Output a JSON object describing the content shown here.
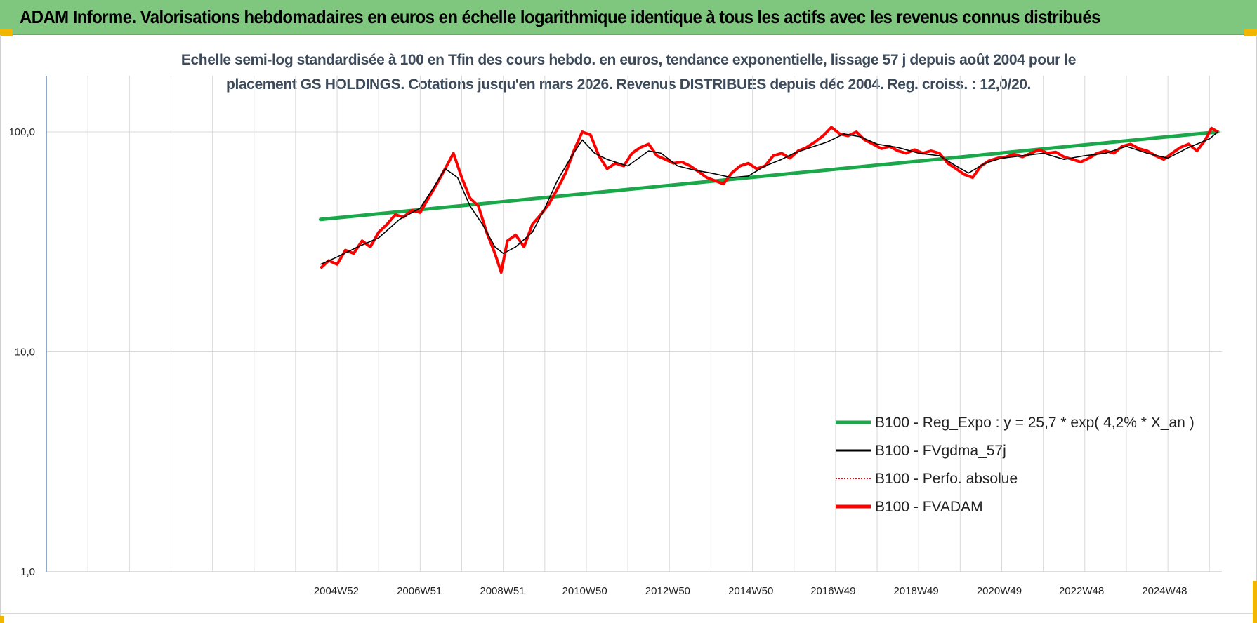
{
  "header": {
    "title": "ADAM Informe. Valorisations hebdomadaires en euros en échelle logarithmique identique à tous les actifs avec les revenus connus distribués"
  },
  "colors": {
    "banner": "#7fc77f",
    "corner": "#f2b500",
    "reg_expo": "#1aa84a",
    "fvgdma": "#000000",
    "perfo": "#c00000",
    "fvadam": "#ff0000",
    "grid": "#d9d9d9",
    "axis": "#4a6fa5"
  },
  "chart_data": {
    "type": "line",
    "title_line1": "Echelle semi-log standardisée à 100 en Tfin des cours hebdo. en euros, tendance exponentielle, lissage 57 j depuis août 2004 pour le",
    "title_line2": "placement GS HOLDINGS. Cotations jusqu'en mars 2026. Revenus DISTRIBUES depuis déc 2004. Reg. croiss. : 12,0/20.",
    "y_scale": "log",
    "ylim": [
      1,
      180
    ],
    "y_ticks": [
      {
        "value": 1,
        "label": "1,0"
      },
      {
        "value": 10,
        "label": "10,0"
      },
      {
        "value": 100,
        "label": "100,0"
      }
    ],
    "xlim": [
      1998.0,
      2026.3
    ],
    "x_ticks": [
      {
        "value": 2004.98,
        "label": "2004W52"
      },
      {
        "value": 2006.98,
        "label": "2006W51"
      },
      {
        "value": 2008.98,
        "label": "2008W51"
      },
      {
        "value": 2010.96,
        "label": "2010W50"
      },
      {
        "value": 2012.96,
        "label": "2012W50"
      },
      {
        "value": 2014.96,
        "label": "2014W50"
      },
      {
        "value": 2016.94,
        "label": "2016W49"
      },
      {
        "value": 2018.94,
        "label": "2018W49"
      },
      {
        "value": 2020.94,
        "label": "2020W49"
      },
      {
        "value": 2022.92,
        "label": "2022W48"
      },
      {
        "value": 2024.92,
        "label": "2024W48"
      }
    ],
    "grid_x_step_years": 1,
    "legend_position": "bottom-right",
    "series": [
      {
        "key": "reg_expo",
        "name": "B100 - Reg_Expo : y = 25,7 * exp( 4,2% *  X_an )",
        "style": "thick",
        "x": [
          2004.6,
          2026.2
        ],
        "y": [
          40.0,
          100.0
        ]
      },
      {
        "key": "fvgdma",
        "name": "B100 - FVgdma_57j",
        "style": "thin",
        "x": [
          2004.6,
          2005.0,
          2005.5,
          2006.0,
          2006.5,
          2007.0,
          2007.3,
          2007.6,
          2007.9,
          2008.2,
          2008.5,
          2008.8,
          2009.0,
          2009.3,
          2009.7,
          2010.0,
          2010.3,
          2010.6,
          2010.9,
          2011.2,
          2011.5,
          2012.0,
          2012.5,
          2012.8,
          2013.2,
          2013.6,
          2014.0,
          2014.5,
          2014.9,
          2015.3,
          2015.7,
          2016.0,
          2016.4,
          2016.8,
          2017.2,
          2017.6,
          2018.0,
          2018.5,
          2019.0,
          2019.5,
          2019.9,
          2020.2,
          2020.6,
          2021.0,
          2021.5,
          2022.0,
          2022.5,
          2023.0,
          2023.5,
          2024.0,
          2024.5,
          2025.0,
          2025.5,
          2026.0,
          2026.2
        ],
        "y": [
          25,
          27,
          30,
          33,
          40,
          45,
          55,
          68,
          62,
          46,
          38,
          30,
          28,
          30,
          35,
          45,
          60,
          75,
          92,
          80,
          75,
          70,
          82,
          80,
          70,
          67,
          65,
          62,
          63,
          70,
          75,
          80,
          85,
          90,
          98,
          95,
          88,
          85,
          80,
          78,
          70,
          65,
          72,
          76,
          78,
          80,
          75,
          78,
          80,
          86,
          80,
          76,
          85,
          93,
          100
        ]
      },
      {
        "key": "perfo",
        "name": "B100 - Perfo. absolue",
        "style": "dotted",
        "x": [],
        "y": []
      },
      {
        "key": "fvadam",
        "name": "B100 - FVADAM",
        "style": "thick-noisy",
        "x": [
          2004.6,
          2004.8,
          2005.0,
          2005.2,
          2005.4,
          2005.6,
          2005.8,
          2006.0,
          2006.2,
          2006.4,
          2006.6,
          2006.8,
          2007.0,
          2007.2,
          2007.4,
          2007.6,
          2007.8,
          2008.0,
          2008.2,
          2008.4,
          2008.6,
          2008.8,
          2008.95,
          2009.1,
          2009.3,
          2009.5,
          2009.7,
          2009.9,
          2010.1,
          2010.3,
          2010.5,
          2010.7,
          2010.9,
          2011.1,
          2011.3,
          2011.5,
          2011.7,
          2011.9,
          2012.1,
          2012.3,
          2012.5,
          2012.7,
          2012.9,
          2013.1,
          2013.3,
          2013.5,
          2013.7,
          2013.9,
          2014.1,
          2014.3,
          2014.5,
          2014.7,
          2014.9,
          2015.1,
          2015.3,
          2015.5,
          2015.7,
          2015.9,
          2016.1,
          2016.3,
          2016.5,
          2016.7,
          2016.9,
          2017.1,
          2017.3,
          2017.5,
          2017.7,
          2017.9,
          2018.1,
          2018.3,
          2018.5,
          2018.7,
          2018.9,
          2019.1,
          2019.3,
          2019.5,
          2019.7,
          2019.9,
          2020.1,
          2020.3,
          2020.5,
          2020.7,
          2020.9,
          2021.1,
          2021.3,
          2021.5,
          2021.7,
          2021.9,
          2022.1,
          2022.3,
          2022.5,
          2022.7,
          2022.9,
          2023.1,
          2023.3,
          2023.5,
          2023.7,
          2023.9,
          2024.1,
          2024.3,
          2024.5,
          2024.7,
          2024.9,
          2025.1,
          2025.3,
          2025.5,
          2025.7,
          2025.9,
          2026.05,
          2026.2
        ],
        "y": [
          24,
          26,
          25,
          29,
          28,
          32,
          30,
          35,
          38,
          42,
          41,
          44,
          43,
          50,
          58,
          68,
          80,
          62,
          50,
          46,
          35,
          28,
          23,
          32,
          34,
          30,
          38,
          42,
          47,
          55,
          65,
          82,
          100,
          97,
          78,
          68,
          72,
          70,
          80,
          85,
          88,
          78,
          75,
          72,
          73,
          70,
          66,
          62,
          60,
          58,
          65,
          70,
          72,
          68,
          70,
          78,
          80,
          76,
          82,
          85,
          90,
          96,
          105,
          98,
          96,
          100,
          92,
          88,
          84,
          86,
          82,
          80,
          83,
          80,
          82,
          80,
          72,
          68,
          64,
          62,
          70,
          74,
          76,
          77,
          79,
          77,
          80,
          83,
          80,
          81,
          77,
          75,
          73,
          76,
          80,
          82,
          80,
          86,
          88,
          84,
          82,
          78,
          75,
          80,
          85,
          88,
          82,
          92,
          104,
          100
        ]
      }
    ]
  }
}
